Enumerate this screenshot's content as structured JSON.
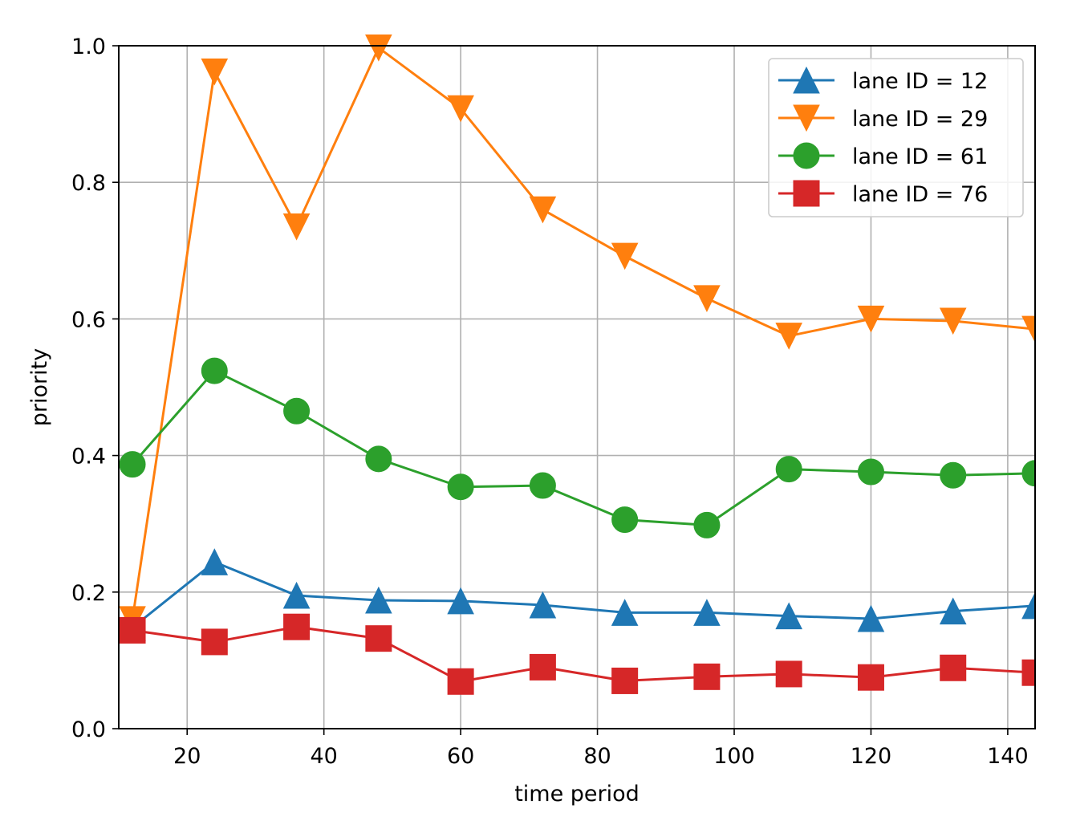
{
  "chart_data": {
    "type": "line",
    "title": "",
    "xlabel": "time period",
    "ylabel": "priority",
    "xlim": [
      10,
      144
    ],
    "ylim": [
      0.0,
      1.0
    ],
    "xticks": [
      20,
      40,
      60,
      80,
      100,
      120,
      140
    ],
    "xtick_labels": [
      "20",
      "40",
      "60",
      "80",
      "100",
      "120",
      "140"
    ],
    "yticks": [
      0.0,
      0.2,
      0.4,
      0.6,
      0.8,
      1.0
    ],
    "ytick_labels": [
      "0.0",
      "0.2",
      "0.4",
      "0.6",
      "0.8",
      "1.0"
    ],
    "grid": true,
    "legend_position": "top-right",
    "x": [
      12,
      24,
      36,
      48,
      60,
      72,
      84,
      96,
      108,
      120,
      132,
      144
    ],
    "series": [
      {
        "name": "lane ID = 12",
        "marker": "triangle-up",
        "color": "#1f77b4",
        "values": [
          0.148,
          0.244,
          0.195,
          0.188,
          0.187,
          0.181,
          0.17,
          0.17,
          0.165,
          0.161,
          0.172,
          0.18
        ]
      },
      {
        "name": "lane ID = 29",
        "marker": "triangle-down",
        "color": "#ff7f0e",
        "values": [
          0.16,
          0.962,
          0.735,
          0.997,
          0.908,
          0.76,
          0.692,
          0.63,
          0.575,
          0.6,
          0.597,
          0.585
        ]
      },
      {
        "name": "lane ID = 61",
        "marker": "circle",
        "color": "#2ca02c",
        "values": [
          0.387,
          0.524,
          0.465,
          0.395,
          0.354,
          0.356,
          0.306,
          0.298,
          0.38,
          0.376,
          0.371,
          0.374
        ]
      },
      {
        "name": "lane ID = 76",
        "marker": "square",
        "color": "#d62728",
        "values": [
          0.144,
          0.127,
          0.149,
          0.132,
          0.069,
          0.09,
          0.07,
          0.076,
          0.08,
          0.075,
          0.089,
          0.082
        ]
      }
    ]
  }
}
